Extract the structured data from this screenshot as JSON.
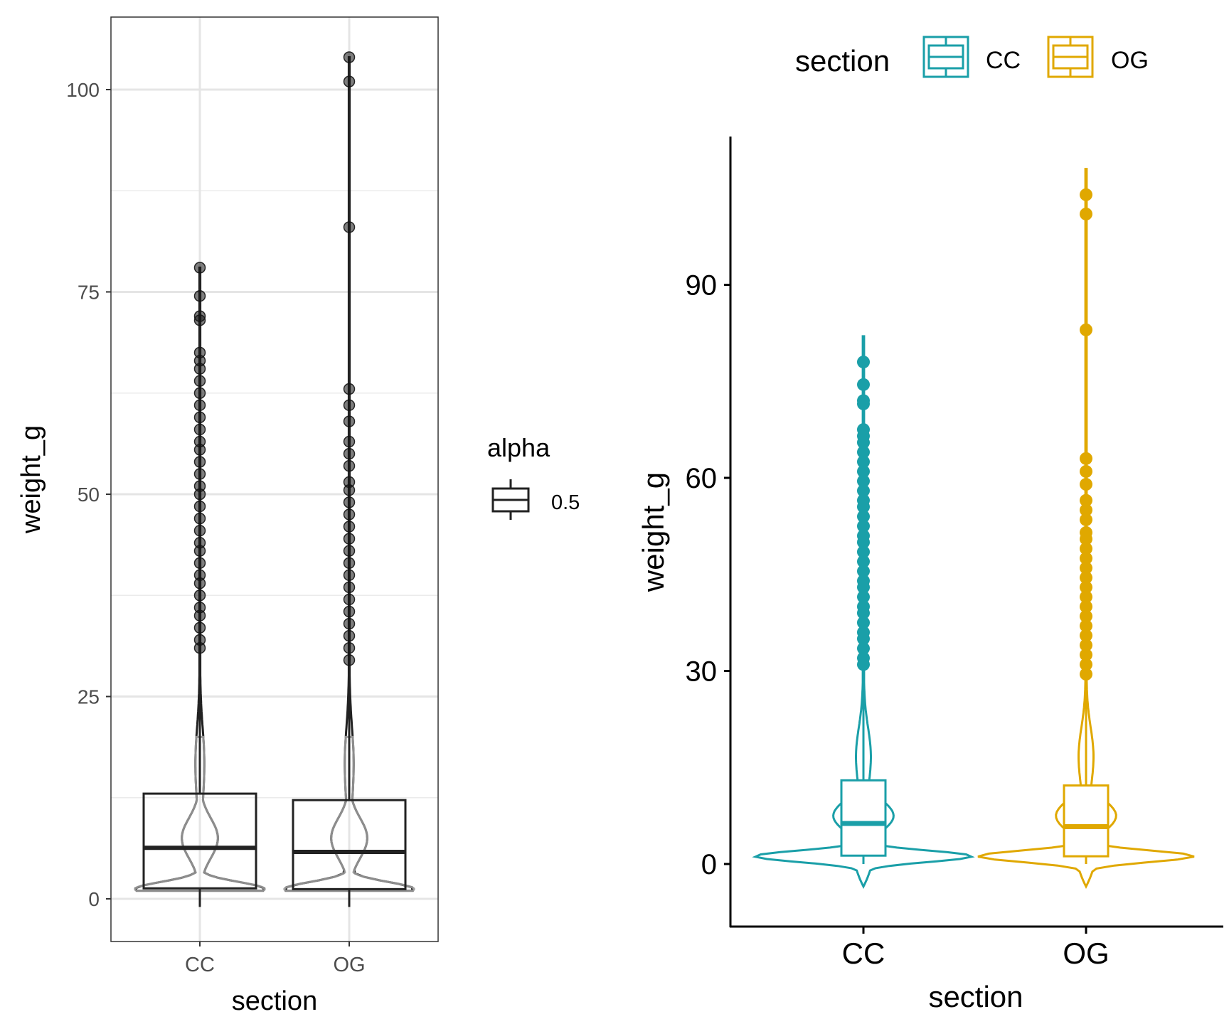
{
  "chart_data": [
    {
      "type": "violin+box",
      "theme": "bw",
      "xlabel": "section",
      "ylabel": "weight_g",
      "categories": [
        "CC",
        "OG"
      ],
      "ylim": [
        -4,
        109
      ],
      "yticks": [
        0,
        25,
        50,
        75,
        100
      ],
      "grid": true,
      "boxes": [
        {
          "category": "CC",
          "min": 1,
          "q1": 1.3,
          "median": 6.3,
          "q3": 13,
          "whisker_high": 30.5,
          "max": 78
        },
        {
          "category": "OG",
          "min": 1,
          "q1": 1.2,
          "median": 5.8,
          "q3": 12.2,
          "whisker_high": 29,
          "max": 104
        }
      ],
      "outliers": [
        {
          "category": "CC",
          "values": [
            31,
            32,
            33.5,
            35,
            36,
            37.5,
            39,
            40,
            41.5,
            43,
            44,
            45.5,
            47,
            48.5,
            50,
            51,
            52.5,
            54,
            55.5,
            56.5,
            58,
            59.5,
            61,
            62.5,
            64,
            65.5,
            66.5,
            67.5,
            71.5,
            72,
            74.5,
            78
          ]
        },
        {
          "category": "OG",
          "values": [
            29.5,
            31,
            32.5,
            34,
            35.5,
            37,
            38.5,
            40,
            41.5,
            43,
            44.5,
            46,
            47.5,
            49,
            50.5,
            51.5,
            53.5,
            55,
            56.5,
            59,
            61,
            63,
            83,
            101,
            104
          ]
        }
      ],
      "legend": {
        "title": "alpha",
        "items": [
          "0.5"
        ],
        "position": "right"
      },
      "colors": {
        "line": "#222222",
        "violin_inner": "#999999"
      }
    },
    {
      "type": "violin+box",
      "theme": "classic",
      "xlabel": "section",
      "ylabel": "weight_g",
      "categories": [
        "CC",
        "OG"
      ],
      "ylim": [
        -8,
        114
      ],
      "yticks": [
        0,
        30,
        60,
        90
      ],
      "grid": false,
      "boxes": [
        {
          "category": "CC",
          "min": 1,
          "q1": 1.3,
          "median": 6.3,
          "q3": 13,
          "whisker_high": 30.5,
          "max": 78
        },
        {
          "category": "OG",
          "min": 1,
          "q1": 1.2,
          "median": 5.8,
          "q3": 12.2,
          "whisker_high": 29,
          "max": 104
        }
      ],
      "outliers": [
        {
          "category": "CC",
          "values": [
            31,
            32,
            33.5,
            35,
            36,
            37.5,
            39,
            40,
            41.5,
            43,
            44,
            45.5,
            47,
            48.5,
            50,
            51,
            52.5,
            54,
            55.5,
            56.5,
            58,
            59.5,
            61,
            62.5,
            64,
            65.5,
            66.5,
            67.5,
            71.5,
            72,
            74.5,
            78
          ]
        },
        {
          "category": "OG",
          "values": [
            29.5,
            31,
            32.5,
            34,
            35.5,
            37,
            38.5,
            40,
            41.5,
            43,
            44.5,
            46,
            47.5,
            49,
            50.5,
            51.5,
            53.5,
            55,
            56.5,
            59,
            61,
            63,
            83,
            101,
            104
          ]
        }
      ],
      "legend": {
        "title": "section",
        "items": [
          "CC",
          "OG"
        ],
        "position": "top"
      },
      "colors": {
        "CC": "#1A9FA8",
        "OG": "#E0A800"
      }
    }
  ]
}
